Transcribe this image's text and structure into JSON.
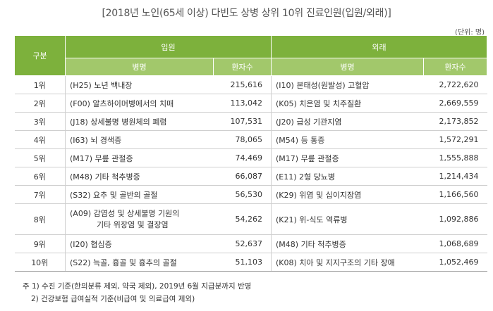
{
  "title": "[2018년 노인(65세 이상) 다빈도 상병 상위 10위 진료인원(입원/외래)]",
  "unit": "(단위: 명)",
  "header": {
    "rank": "구분",
    "inpatient": "입원",
    "outpatient": "외래",
    "disease": "병명",
    "patients": "환자수"
  },
  "rows": [
    {
      "rank": "1위",
      "in_name": "(H25) 노년 백내장",
      "in_count": "215,616",
      "out_name": "(I10) 본태성(원발성) 고혈압",
      "out_count": "2,722,620"
    },
    {
      "rank": "2위",
      "in_name": "(F00) 알츠하이머병에서의 치매",
      "in_count": "113,042",
      "out_name": "(K05) 치은염 및 치주질환",
      "out_count": "2,669,559"
    },
    {
      "rank": "3위",
      "in_name": "(J18) 상세불명 병원체의 폐렴",
      "in_count": "107,531",
      "out_name": "(J20) 급성 기관지염",
      "out_count": "2,173,852"
    },
    {
      "rank": "4위",
      "in_name": "(I63) 뇌 경색증",
      "in_count": "78,065",
      "out_name": "(M54) 등 통증",
      "out_count": "1,572,291"
    },
    {
      "rank": "5위",
      "in_name": "(M17) 무릎 관절증",
      "in_count": "74,469",
      "out_name": "(M17) 무릎 관절증",
      "out_count": "1,555,888"
    },
    {
      "rank": "6위",
      "in_name": "(M48) 기타 척추병증",
      "in_count": "66,087",
      "out_name": "(E11) 2형 당뇨병",
      "out_count": "1,214,434"
    },
    {
      "rank": "7위",
      "in_name": "(S32) 요추 및 골반의 골절",
      "in_count": "56,530",
      "out_name": "(K29) 위염 및 십이지장염",
      "out_count": "1,166,560"
    },
    {
      "rank": "8위",
      "in_name_line1": "(A09) 감염성 및 상세불명 기원의",
      "in_name_line2": "기타 위장염 및 결장염",
      "in_count": "54,262",
      "out_name": "(K21) 위-식도 역류병",
      "out_count": "1,092,886"
    },
    {
      "rank": "9위",
      "in_name": "(I20) 협심증",
      "in_count": "52,637",
      "out_name": "(M48) 기타 척추병증",
      "out_count": "1,068,689"
    },
    {
      "rank": "10위",
      "in_name": "(S22) 늑골, 흉골 및 흉추의 골절",
      "in_count": "51,103",
      "out_name": "(K08) 치아 및 지지구조의 기타 장애",
      "out_count": "1,052,469"
    }
  ],
  "notes": [
    "주 1) 수진 기준(한의분류 제외, 약국 제외), 2019년 6월 지급분까지 반영",
    "2) 건강보험 급여실적 기준(비급여 및 의료급여 제외)"
  ]
}
